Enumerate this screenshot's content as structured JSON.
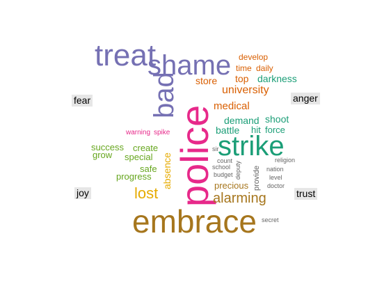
{
  "emotion_labels": {
    "fear": "fear",
    "anger": "anger",
    "joy": "joy",
    "trust": "trust"
  },
  "colors": {
    "fear": "#7570b3",
    "anger": "#d95f02",
    "fear_anger": "#e7298a",
    "trust": "#1b9e77",
    "joy": "#66a61e",
    "joy_alt": "#e6ab02",
    "embrace": "#a6761d",
    "neutral": "#666666"
  },
  "words": [
    {
      "id": "treat",
      "text": "treat",
      "color": "fear"
    },
    {
      "id": "shame",
      "text": "shame",
      "color": "fear"
    },
    {
      "id": "bad",
      "text": "bad",
      "color": "fear"
    },
    {
      "id": "police",
      "text": "police",
      "color": "fear_anger"
    },
    {
      "id": "develop",
      "text": "develop",
      "color": "anger"
    },
    {
      "id": "time",
      "text": "time",
      "color": "anger"
    },
    {
      "id": "daily",
      "text": "daily",
      "color": "anger"
    },
    {
      "id": "top",
      "text": "top",
      "color": "anger"
    },
    {
      "id": "darkness",
      "text": "darkness",
      "color": "trust"
    },
    {
      "id": "store",
      "text": "store",
      "color": "anger"
    },
    {
      "id": "university",
      "text": "university",
      "color": "anger"
    },
    {
      "id": "medical",
      "text": "medical",
      "color": "anger"
    },
    {
      "id": "demand",
      "text": "demand",
      "color": "trust"
    },
    {
      "id": "shoot",
      "text": "shoot",
      "color": "trust"
    },
    {
      "id": "battle",
      "text": "battle",
      "color": "trust"
    },
    {
      "id": "hit",
      "text": "hit",
      "color": "trust"
    },
    {
      "id": "force",
      "text": "force",
      "color": "trust"
    },
    {
      "id": "warning",
      "text": "warning",
      "color": "fear_anger"
    },
    {
      "id": "spike",
      "text": "spike",
      "color": "fear_anger"
    },
    {
      "id": "strike",
      "text": "strike",
      "color": "trust"
    },
    {
      "id": "success",
      "text": "success",
      "color": "joy"
    },
    {
      "id": "create",
      "text": "create",
      "color": "joy"
    },
    {
      "id": "grow",
      "text": "grow",
      "color": "joy"
    },
    {
      "id": "special",
      "text": "special",
      "color": "joy"
    },
    {
      "id": "safe",
      "text": "safe",
      "color": "joy"
    },
    {
      "id": "progress",
      "text": "progress",
      "color": "joy"
    },
    {
      "id": "absence",
      "text": "absence",
      "color": "joy_alt"
    },
    {
      "id": "lost",
      "text": "lost",
      "color": "joy_alt"
    },
    {
      "id": "sir",
      "text": "sir",
      "color": "neutral"
    },
    {
      "id": "count",
      "text": "count",
      "color": "neutral"
    },
    {
      "id": "school",
      "text": "school",
      "color": "neutral"
    },
    {
      "id": "budget",
      "text": "budget",
      "color": "neutral"
    },
    {
      "id": "deputy",
      "text": "deputy",
      "color": "neutral"
    },
    {
      "id": "provide",
      "text": "provide",
      "color": "neutral"
    },
    {
      "id": "religion",
      "text": "religion",
      "color": "neutral"
    },
    {
      "id": "nation",
      "text": "nation",
      "color": "neutral"
    },
    {
      "id": "level",
      "text": "level",
      "color": "neutral"
    },
    {
      "id": "doctor",
      "text": "doctor",
      "color": "neutral"
    },
    {
      "id": "precious",
      "text": "precious",
      "color": "embrace"
    },
    {
      "id": "alarming",
      "text": "alarming",
      "color": "embrace"
    },
    {
      "id": "embrace",
      "text": "embrace",
      "color": "embrace"
    },
    {
      "id": "secret",
      "text": "secret",
      "color": "neutral"
    }
  ]
}
